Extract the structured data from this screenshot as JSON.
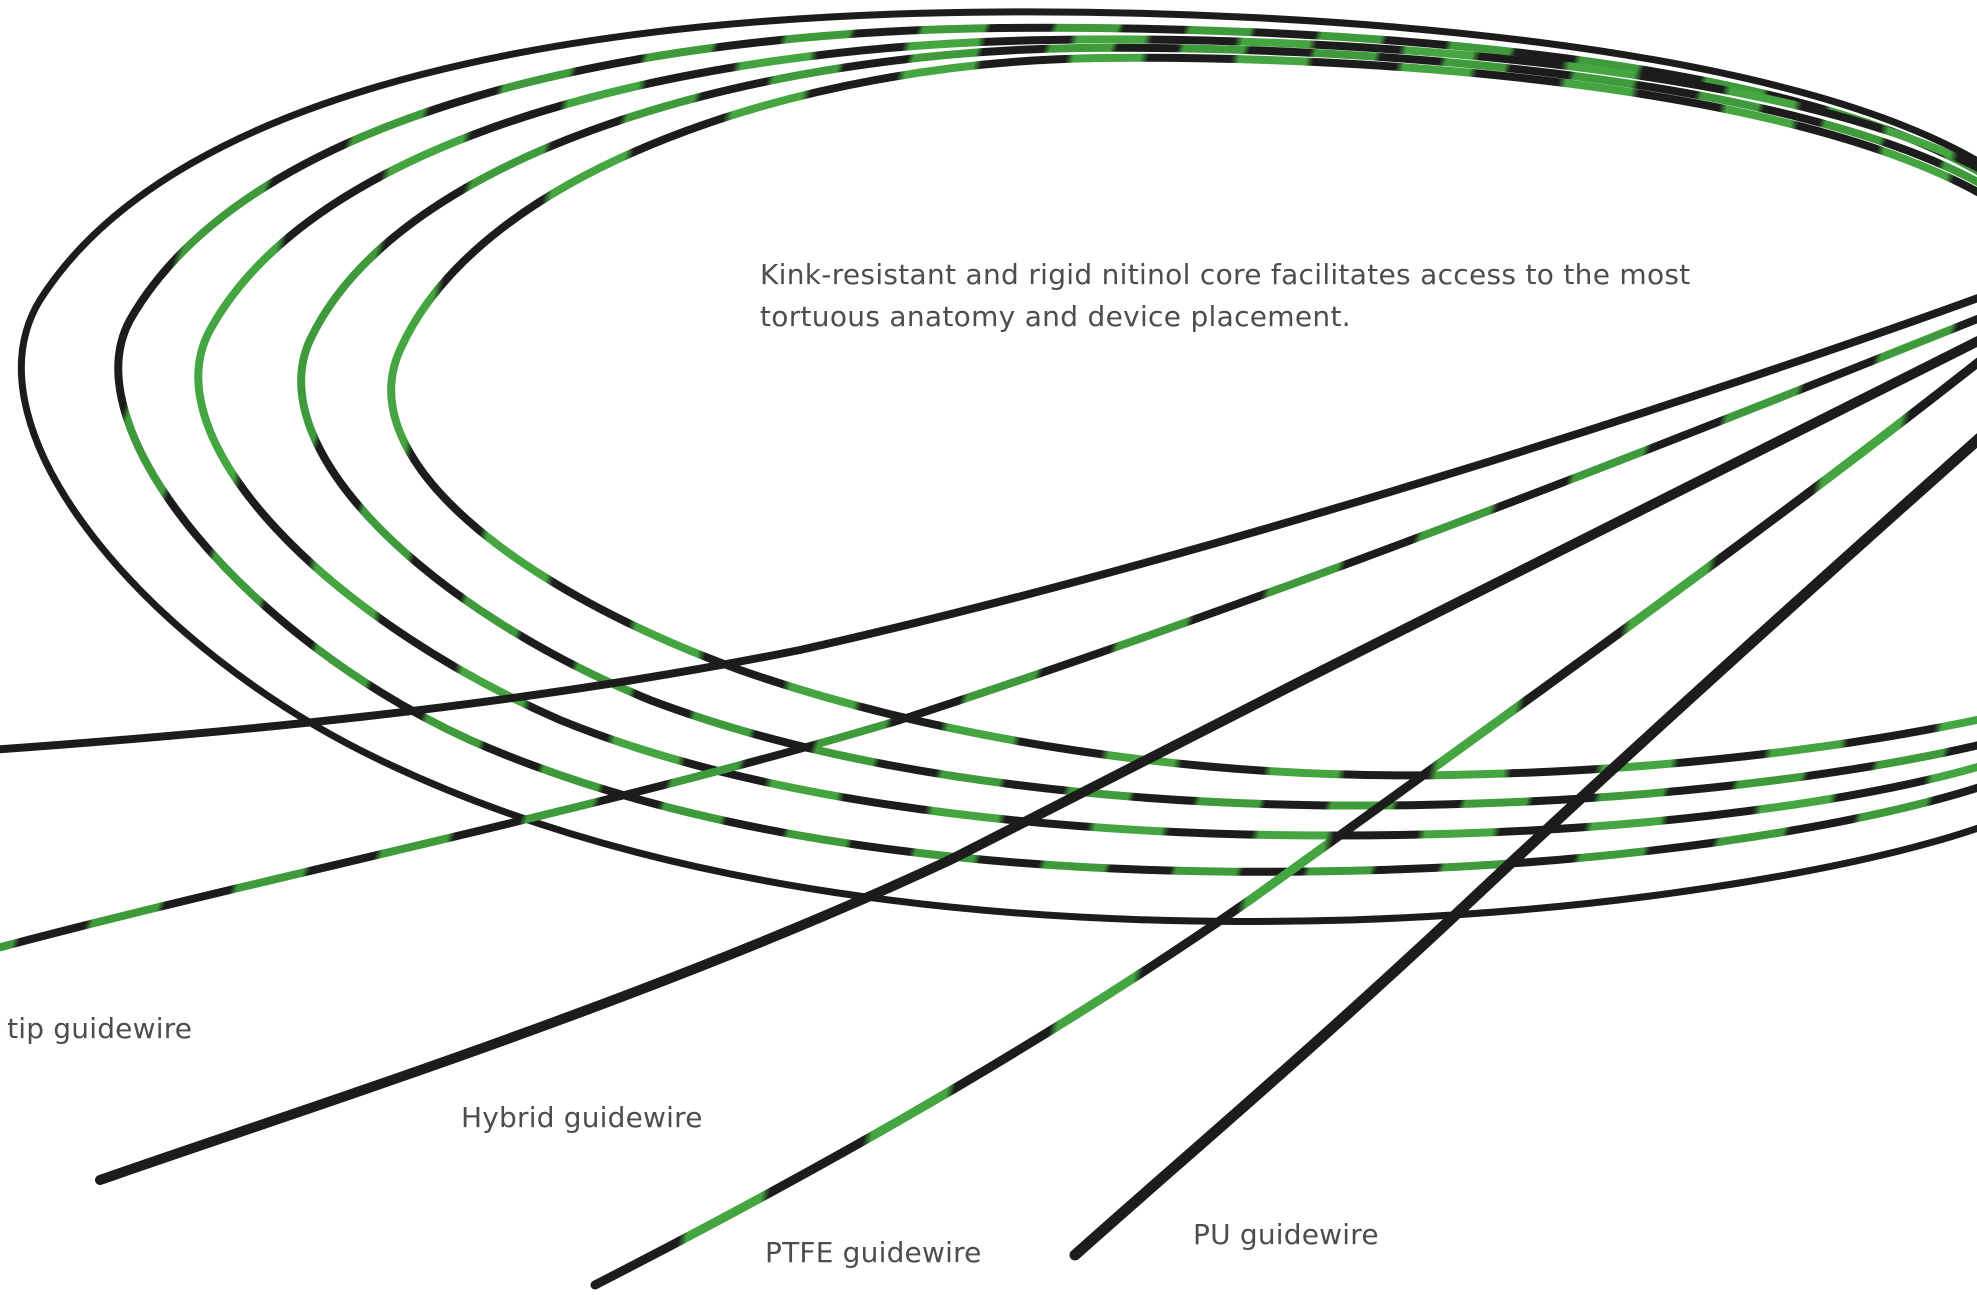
{
  "description": {
    "line1": "Kink-resistant and rigid nitinol core facilitates access to the most",
    "line2": "tortuous anatomy and device placement."
  },
  "labels": {
    "coiled_tip": "l tip guidewire",
    "hybrid": "Hybrid guidewire",
    "ptfe": "PTFE guidewire",
    "pu": "PU guidewire"
  },
  "colors": {
    "wire_dark": "#1c1c1c",
    "wire_green": "#3f9a3c",
    "text": "#4d4d4d",
    "background": "#ffffff"
  }
}
